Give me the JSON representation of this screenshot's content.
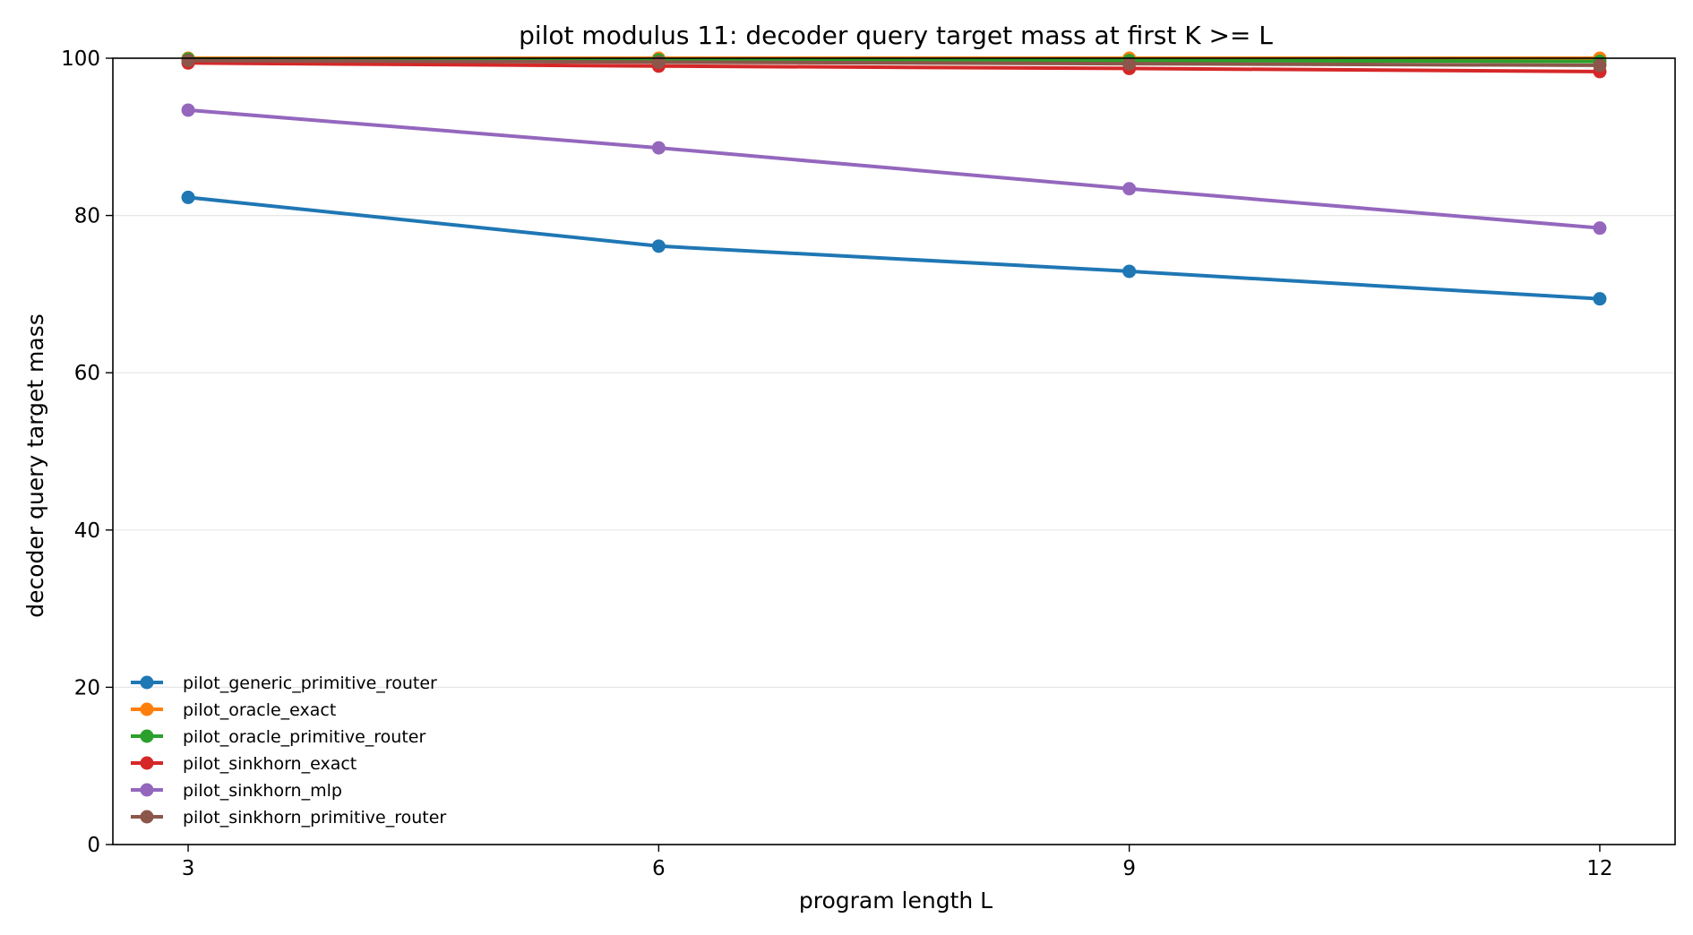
{
  "chart_data": {
    "type": "line",
    "title": "pilot modulus 11: decoder query target mass at first K >= L",
    "xlabel": "program length L",
    "ylabel": "decoder query target mass",
    "x": [
      3,
      6,
      9,
      12
    ],
    "xticks": [
      "3",
      "6",
      "9",
      "12"
    ],
    "yticks": [
      "0",
      "20",
      "40",
      "60",
      "80",
      "100"
    ],
    "xlim": [
      2.52,
      12.48
    ],
    "ylim": [
      0,
      100
    ],
    "grid": "horizontal",
    "legend_position": "lower-left",
    "series": [
      {
        "name": "pilot_generic_primitive_router",
        "color": "#1f77b4",
        "values": [
          82.3,
          76.1,
          72.9,
          69.4
        ]
      },
      {
        "name": "pilot_oracle_exact",
        "color": "#ff7f0e",
        "values": [
          100.0,
          100.0,
          100.0,
          100.0
        ]
      },
      {
        "name": "pilot_oracle_primitive_router",
        "color": "#2ca02c",
        "values": [
          99.9,
          99.8,
          99.7,
          99.6
        ]
      },
      {
        "name": "pilot_sinkhorn_exact",
        "color": "#d62728",
        "values": [
          99.4,
          99.0,
          98.7,
          98.3
        ]
      },
      {
        "name": "pilot_sinkhorn_mlp",
        "color": "#9467bd",
        "values": [
          93.4,
          88.6,
          83.4,
          78.4
        ]
      },
      {
        "name": "pilot_sinkhorn_primitive_router",
        "color": "#8c564b",
        "values": [
          99.7,
          99.5,
          99.3,
          99.1
        ]
      }
    ]
  }
}
